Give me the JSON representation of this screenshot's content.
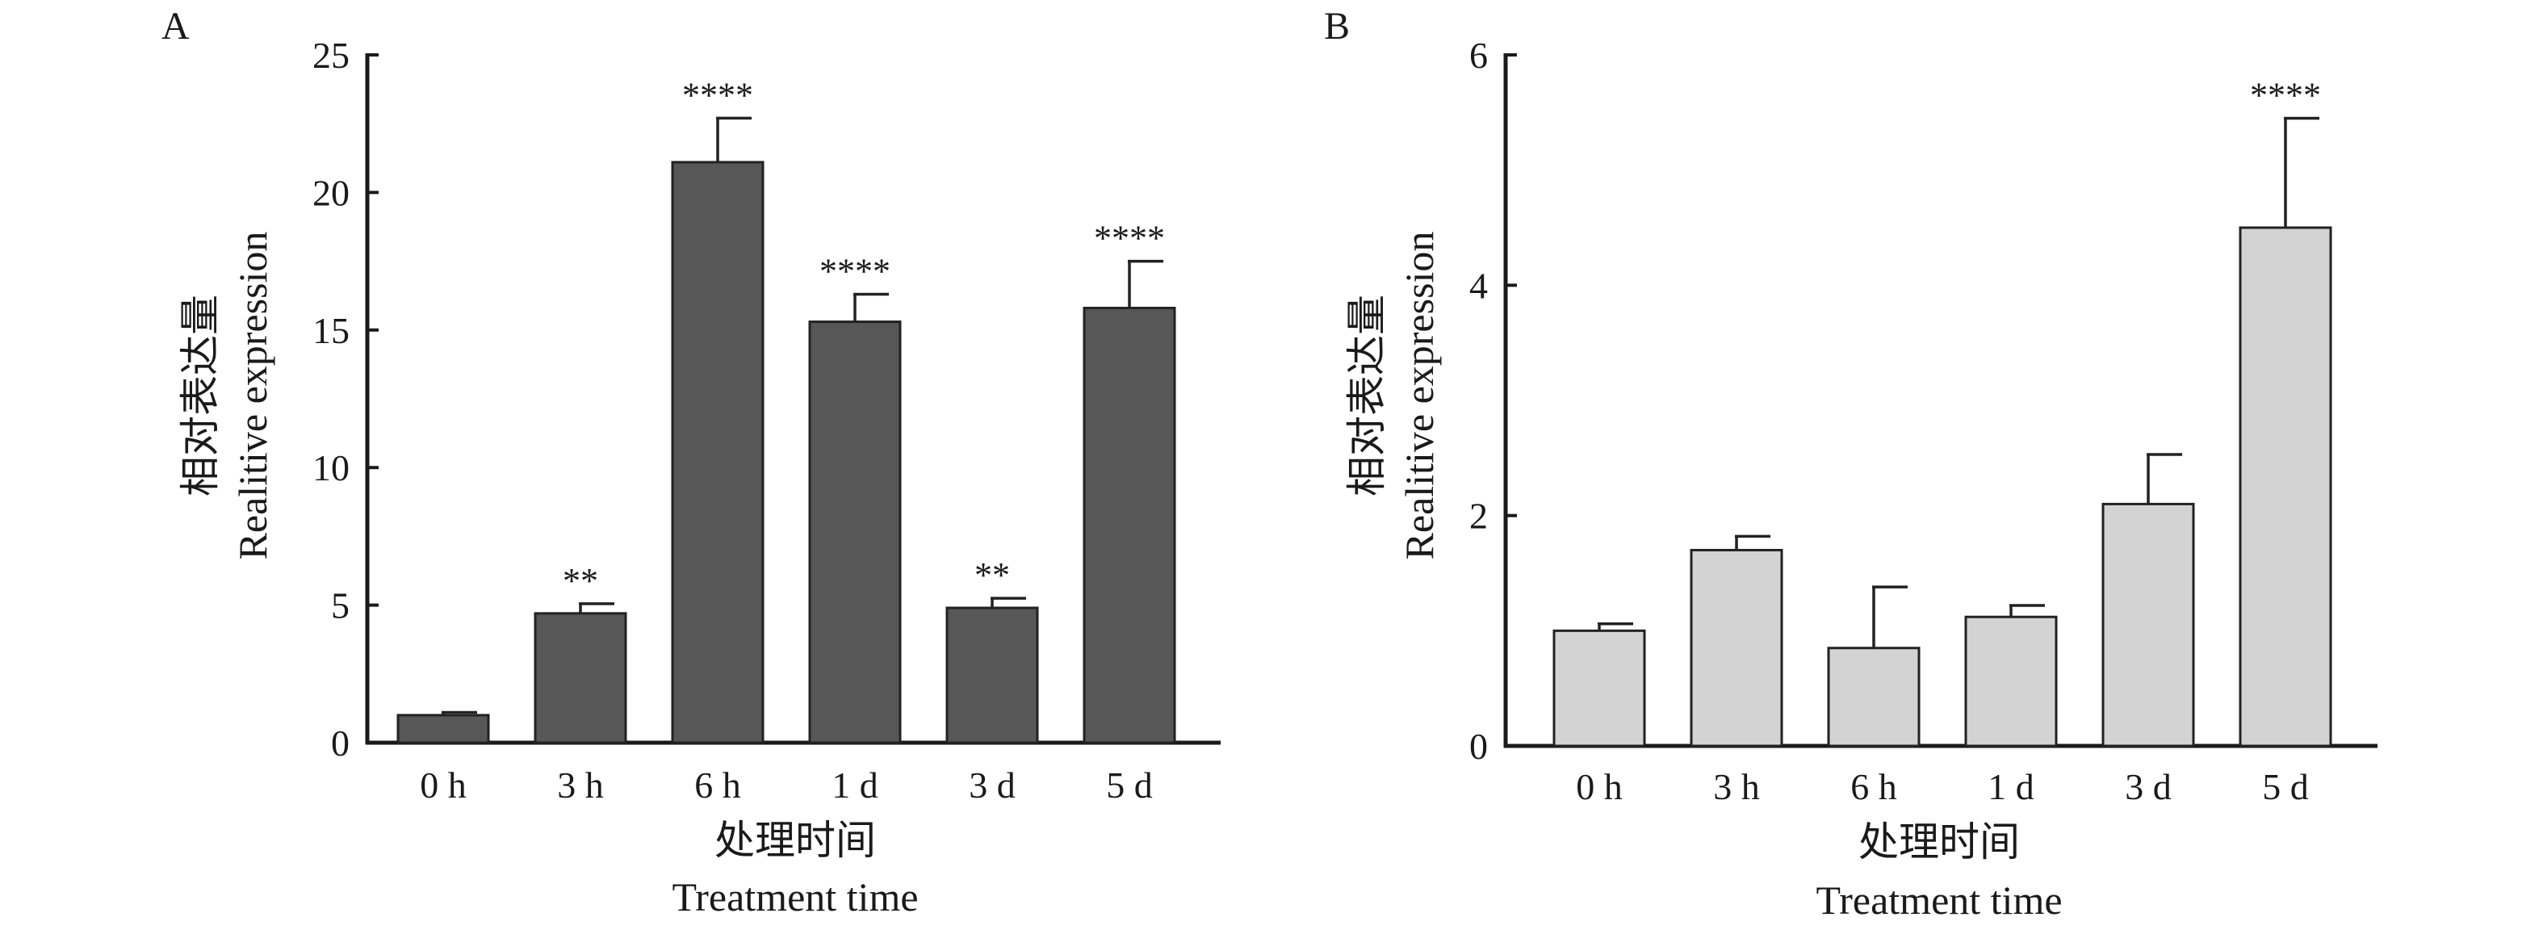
{
  "figure": {
    "colors": {
      "panel_A_bar": "#575757",
      "panel_B_bar": "#d3d3d3",
      "axis": "#1a1a1a"
    }
  },
  "chart_data": [
    {
      "panel": "A",
      "type": "bar",
      "xlabel_cn": "处理时间",
      "xlabel": "Treatment time",
      "ylabel_cn": "相对表达量",
      "ylabel": "Realitive expression",
      "categories": [
        "0 h",
        "3 h",
        "6 h",
        "1 d",
        "3 d",
        "5 d"
      ],
      "values": [
        1.0,
        4.7,
        21.1,
        15.3,
        4.9,
        15.8
      ],
      "errors": [
        0.1,
        0.35,
        1.6,
        1.0,
        0.35,
        1.7
      ],
      "significance": [
        "",
        "**",
        "****",
        "****",
        "**",
        "****"
      ],
      "ylim": [
        0,
        25
      ],
      "yticks": [
        0,
        5,
        10,
        15,
        20,
        25
      ],
      "bar_color": "#575757",
      "grid": false,
      "legend": "none"
    },
    {
      "panel": "B",
      "type": "bar",
      "xlabel_cn": "处理时间",
      "xlabel": "Treatment time",
      "ylabel_cn": "相对表达量",
      "ylabel": "Realitive expression",
      "categories": [
        "0 h",
        "3 h",
        "6 h",
        "1 d",
        "3 d",
        "5 d"
      ],
      "values": [
        1.0,
        1.7,
        0.85,
        1.12,
        2.1,
        4.5
      ],
      "errors": [
        0.06,
        0.12,
        0.53,
        0.1,
        0.43,
        0.95
      ],
      "significance": [
        "",
        "",
        "",
        "",
        "",
        "****"
      ],
      "ylim": [
        0,
        6
      ],
      "yticks": [
        0,
        2,
        4,
        6
      ],
      "bar_color": "#d3d3d3",
      "grid": false,
      "legend": "none"
    }
  ]
}
